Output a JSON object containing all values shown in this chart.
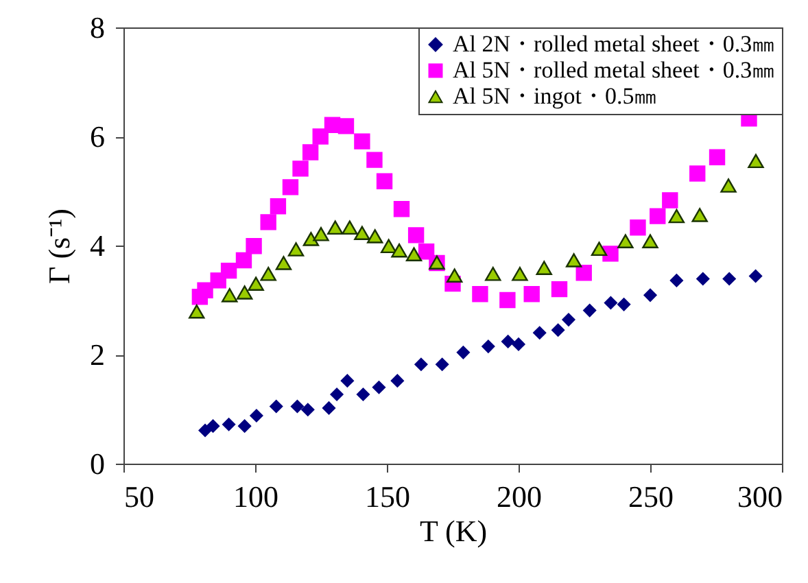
{
  "chart_data": {
    "type": "scatter",
    "xlabel": "T (K)",
    "ylabel": "Γ (s⁻¹)",
    "xlim": [
      50,
      300
    ],
    "xticks": [
      50,
      100,
      150,
      200,
      250,
      300
    ],
    "ylim": [
      0,
      8
    ],
    "yticks": [
      0,
      2,
      4,
      6,
      8
    ],
    "grid": false,
    "legend": "top right",
    "series": [
      {
        "name": "Al 2N・rolled metal sheet・0.3㎜",
        "color": "#000080",
        "marker": "diamond",
        "x": [
          81,
          84,
          90,
          96,
          100.5,
          108,
          116,
          120,
          128,
          131,
          135,
          141,
          147,
          154,
          163,
          171,
          179,
          188.5,
          196,
          200,
          208,
          215,
          219,
          227,
          235,
          240,
          250,
          260,
          270,
          280,
          290
        ],
        "values": [
          0.61,
          0.69,
          0.72,
          0.69,
          0.88,
          1.05,
          1.05,
          0.99,
          1.02,
          1.27,
          1.52,
          1.27,
          1.4,
          1.52,
          1.82,
          1.82,
          2.04,
          2.15,
          2.24,
          2.19,
          2.4,
          2.45,
          2.64,
          2.81,
          2.95,
          2.92,
          3.09,
          3.36,
          3.39,
          3.39,
          3.44
        ]
      },
      {
        "name": "Al 5N・rolled metal sheet・0.3㎜",
        "color": "#ff00ff",
        "marker": "square",
        "x": [
          79,
          81,
          86,
          90,
          95.7,
          99.5,
          105,
          108.7,
          113.4,
          117.2,
          121,
          124.8,
          129.3,
          134.5,
          140.6,
          145.3,
          149.1,
          155.6,
          161.1,
          165,
          169,
          175,
          185.4,
          195.8,
          205,
          215.5,
          224.8,
          234.9,
          245.3,
          252.8,
          257.5,
          267.9,
          275.4,
          287.5
        ],
        "values": [
          3.06,
          3.18,
          3.36,
          3.54,
          3.73,
          3.99,
          4.43,
          4.72,
          5.07,
          5.41,
          5.71,
          6.0,
          6.21,
          6.19,
          5.91,
          5.57,
          5.18,
          4.67,
          4.19,
          3.89,
          3.68,
          3.3,
          3.11,
          3.0,
          3.11,
          3.2,
          3.5,
          3.85,
          4.33,
          4.54,
          4.83,
          5.32,
          5.62,
          6.33
        ]
      },
      {
        "name": "Al 5N・ingot・0.5㎜",
        "color": "#99cc00",
        "marker": "triangle",
        "x": [
          77.8,
          90.3,
          96,
          100.3,
          105,
          110.8,
          115.5,
          121.2,
          125,
          130.4,
          135.9,
          140.6,
          145.5,
          150.7,
          154.7,
          160.3,
          169,
          175.7,
          190.3,
          200.5,
          209.7,
          221,
          230.6,
          240.6,
          250,
          260,
          268.8,
          279.7,
          290.1
        ],
        "values": [
          2.79,
          3.09,
          3.14,
          3.3,
          3.48,
          3.68,
          3.93,
          4.12,
          4.21,
          4.33,
          4.33,
          4.23,
          4.17,
          3.99,
          3.91,
          3.84,
          3.69,
          3.45,
          3.48,
          3.48,
          3.59,
          3.73,
          3.94,
          4.08,
          4.08,
          4.54,
          4.56,
          5.1,
          5.55
        ]
      }
    ]
  }
}
